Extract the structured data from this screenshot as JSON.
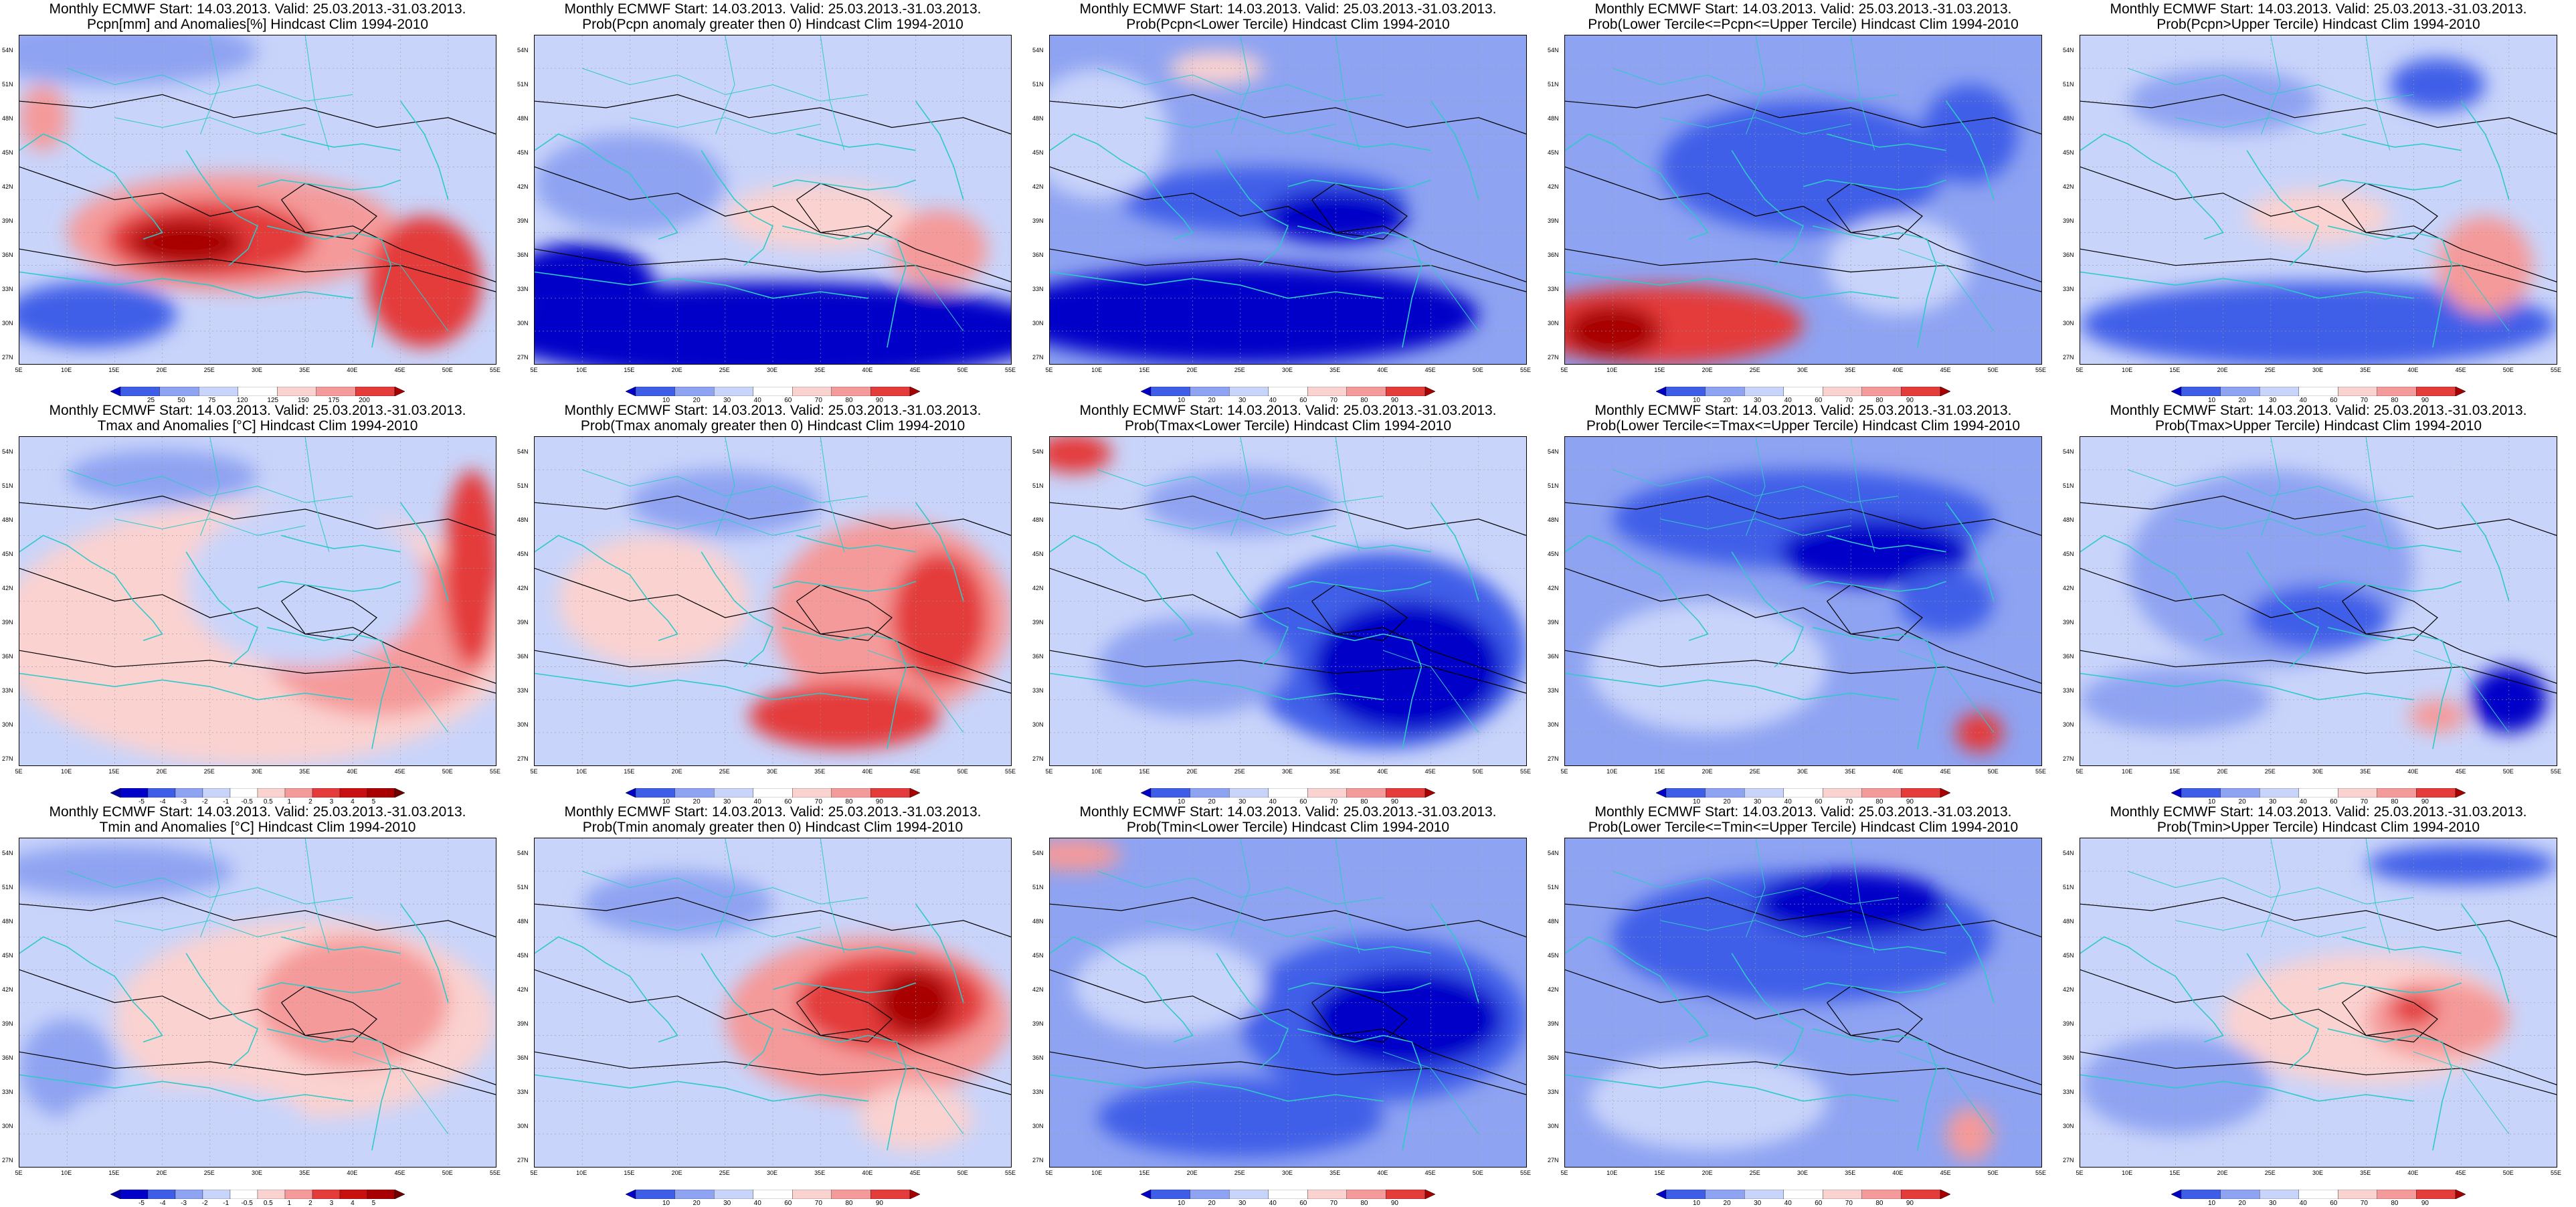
{
  "title_line1": "Monthly ECMWF Start: 14.03.2013. Valid: 25.03.2013.-31.03.2013.",
  "lat_labels": [
    "54N",
    "51N",
    "48N",
    "45N",
    "42N",
    "39N",
    "36N",
    "33N",
    "30N",
    "27N"
  ],
  "lon_labels": [
    "5E",
    "10E",
    "15E",
    "20E",
    "25E",
    "30E",
    "35E",
    "40E",
    "45E",
    "50E",
    "55E"
  ],
  "colors": {
    "blue_dark": "#0000c8",
    "blue_mid": "#3f5ee8",
    "blue_light": "#8ea3f2",
    "blue_pale": "#c9d4fa",
    "red_pale": "#fad2d0",
    "red_light": "#f59a9a",
    "red_mid": "#e43b3b",
    "red_dark": "#a80000",
    "coast": "#2ec9c9",
    "contour": "#000000"
  },
  "legends": {
    "pcpn_anom": [
      "25",
      "50",
      "75",
      "120",
      "125",
      "150",
      "175",
      "200"
    ],
    "temp_anom": [
      "-5",
      "-4",
      "-3",
      "-2",
      "-1",
      "-0.5",
      "0.5",
      "1",
      "2",
      "3",
      "4",
      "5"
    ],
    "prob": [
      "10",
      "20",
      "30",
      "40",
      "60",
      "70",
      "80",
      "90"
    ]
  },
  "panels": [
    {
      "row": 0,
      "col": 0,
      "t2": "Pcpn[mm] and Anomalies[%] Hindcast Clim 1994-2010",
      "legend": "pcpn_anom",
      "scheme": "pa"
    },
    {
      "row": 0,
      "col": 1,
      "t2": "Prob(Pcpn anomaly greater then 0) Hindcast Clim 1994-2010",
      "legend": "prob",
      "scheme": "pb"
    },
    {
      "row": 0,
      "col": 2,
      "t2": "Prob(Pcpn<Lower Tercile) Hindcast Clim 1994-2010",
      "legend": "prob",
      "scheme": "pc"
    },
    {
      "row": 0,
      "col": 3,
      "t2": "Prob(Lower Tercile<=Pcpn<=Upper Tercile) Hindcast Clim 1994-2010",
      "legend": "prob",
      "scheme": "pd"
    },
    {
      "row": 0,
      "col": 4,
      "t2": "Prob(Pcpn>Upper Tercile) Hindcast Clim 1994-2010",
      "legend": "prob",
      "scheme": "pe"
    },
    {
      "row": 1,
      "col": 0,
      "t2": "Tmax and Anomalies [°C] Hindcast Clim 1994-2010",
      "legend": "temp_anom",
      "scheme": "ta"
    },
    {
      "row": 1,
      "col": 1,
      "t2": "Prob(Tmax anomaly greater then 0) Hindcast Clim 1994-2010",
      "legend": "prob",
      "scheme": "tb"
    },
    {
      "row": 1,
      "col": 2,
      "t2": "Prob(Tmax<Lower Tercile) Hindcast Clim 1994-2010",
      "legend": "prob",
      "scheme": "tc"
    },
    {
      "row": 1,
      "col": 3,
      "t2": "Prob(Lower Tercile<=Tmax<=Upper Tercile) Hindcast Clim 1994-2010",
      "legend": "prob",
      "scheme": "td"
    },
    {
      "row": 1,
      "col": 4,
      "t2": "Prob(Tmax>Upper Tercile) Hindcast Clim 1994-2010",
      "legend": "prob",
      "scheme": "te"
    },
    {
      "row": 2,
      "col": 0,
      "t2": "Tmin and Anomalies [°C] Hindcast Clim 1994-2010",
      "legend": "temp_anom",
      "scheme": "ma"
    },
    {
      "row": 2,
      "col": 1,
      "t2": "Prob(Tmin anomaly greater then 0) Hindcast Clim 1994-2010",
      "legend": "prob",
      "scheme": "mb"
    },
    {
      "row": 2,
      "col": 2,
      "t2": "Prob(Tmin<Lower Tercile) Hindcast Clim 1994-2010",
      "legend": "prob",
      "scheme": "mc"
    },
    {
      "row": 2,
      "col": 3,
      "t2": "Prob(Lower Tercile<=Tmin<=Upper Tercile) Hindcast Clim 1994-2010",
      "legend": "prob",
      "scheme": "md"
    },
    {
      "row": 2,
      "col": 4,
      "t2": "Prob(Tmin>Upper Tercile) Hindcast Clim 1994-2010",
      "legend": "prob",
      "scheme": "me"
    }
  ]
}
